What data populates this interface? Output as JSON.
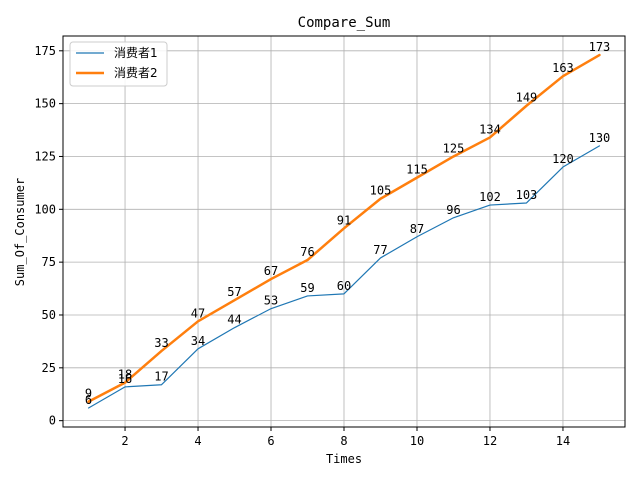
{
  "chart_data": {
    "type": "line",
    "title": "Compare_Sum",
    "xlabel": "Times",
    "ylabel": "Sum_Of_Consumer",
    "xlim": [
      0.3,
      15.7
    ],
    "ylim": [
      -3,
      182
    ],
    "xticks": [
      2,
      4,
      6,
      8,
      10,
      12,
      14
    ],
    "yticks": [
      0,
      25,
      50,
      75,
      100,
      125,
      150,
      175
    ],
    "grid": true,
    "legend_position": "top-left",
    "x": [
      1,
      2,
      3,
      4,
      5,
      6,
      7,
      8,
      9,
      10,
      11,
      12,
      13,
      14,
      15
    ],
    "series": [
      {
        "name": "消费者1",
        "color": "#1f77b4",
        "line_width": "thin",
        "values": [
          6,
          16,
          17,
          34,
          44,
          53,
          59,
          60,
          77,
          87,
          96,
          102,
          103,
          120,
          130
        ]
      },
      {
        "name": "消费者2",
        "color": "#ff7f0e",
        "line_width": "thick",
        "values": [
          9,
          18,
          33,
          47,
          57,
          67,
          76,
          91,
          105,
          115,
          125,
          134,
          149,
          163,
          173
        ]
      }
    ]
  }
}
